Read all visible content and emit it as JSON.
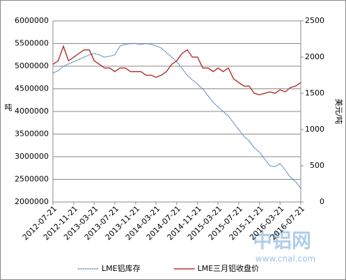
{
  "chart_data": {
    "type": "line",
    "x": [
      "2012-07-21",
      "2012-08-21",
      "2012-09-21",
      "2012-10-21",
      "2012-11-21",
      "2012-12-21",
      "2013-01-21",
      "2013-02-21",
      "2013-03-21",
      "2013-04-21",
      "2013-05-21",
      "2013-06-21",
      "2013-07-21",
      "2013-08-21",
      "2013-09-21",
      "2013-10-21",
      "2013-11-21",
      "2013-12-21",
      "2014-01-21",
      "2014-02-21",
      "2014-03-21",
      "2014-04-21",
      "2014-05-21",
      "2014-06-21",
      "2014-07-21",
      "2014-08-21",
      "2014-09-21",
      "2014-10-21",
      "2014-11-21",
      "2014-12-21",
      "2015-01-21",
      "2015-02-21",
      "2015-03-21",
      "2015-04-21",
      "2015-05-21",
      "2015-06-21",
      "2015-07-21",
      "2015-08-21",
      "2015-09-21",
      "2015-10-21",
      "2015-11-21",
      "2015-12-21",
      "2016-01-21",
      "2016-02-21",
      "2016-03-21",
      "2016-04-21",
      "2016-05-21",
      "2016-06-21",
      "2016-07-21"
    ],
    "xticks": [
      "2012-07-21",
      "2012-11-21",
      "2013-03-21",
      "2013-07-21",
      "2013-11-21",
      "2014-03-21",
      "2014-07-21",
      "2014-11-21",
      "2015-03-21",
      "2015-07-21",
      "2015-11-21",
      "2016-03-21",
      "2016-07-21"
    ],
    "ylabel": "吨",
    "y2label": "美元/吨",
    "ylim": [
      2000000,
      6000000
    ],
    "yticks": [
      2000000,
      2500000,
      3000000,
      3500000,
      4000000,
      4500000,
      5000000,
      5500000,
      6000000
    ],
    "y2lim": [
      0,
      2500
    ],
    "y2ticks": [
      0,
      500,
      1000,
      1500,
      2000,
      2500
    ],
    "grid": true,
    "legend": "bottom",
    "series": [
      {
        "name": "LME铝库存",
        "color": "#4a7fb5",
        "dash": "dotted",
        "values": [
          4850000,
          4900000,
          5000000,
          5050000,
          5100000,
          5150000,
          5200000,
          5250000,
          5280000,
          5250000,
          5200000,
          5220000,
          5250000,
          5450000,
          5480000,
          5500000,
          5500000,
          5480000,
          5500000,
          5480000,
          5450000,
          5400000,
          5300000,
          5200000,
          5100000,
          4950000,
          4800000,
          4700000,
          4600000,
          4500000,
          4350000,
          4200000,
          4100000,
          4000000,
          3900000,
          3750000,
          3600000,
          3450000,
          3350000,
          3200000,
          3100000,
          2950000,
          2800000,
          2780000,
          2850000,
          2700000,
          2550000,
          2450000,
          2300000
        ]
      },
      {
        "name": "LME三月铝收盘价",
        "color": "#b03a3a",
        "axis": "y2",
        "values": [
          1900,
          1950,
          2150,
          1950,
          2000,
          2050,
          2100,
          2100,
          1950,
          1900,
          1850,
          1850,
          1800,
          1850,
          1850,
          1800,
          1800,
          1800,
          1750,
          1750,
          1720,
          1750,
          1800,
          1900,
          1950,
          2050,
          2100,
          2000,
          2000,
          1850,
          1850,
          1800,
          1850,
          1800,
          1850,
          1700,
          1650,
          1600,
          1600,
          1500,
          1480,
          1500,
          1520,
          1500,
          1550,
          1520,
          1580,
          1600,
          1650
        ]
      }
    ],
    "watermark": {
      "title": "中铝网",
      "url": "www.cnal.com"
    }
  }
}
